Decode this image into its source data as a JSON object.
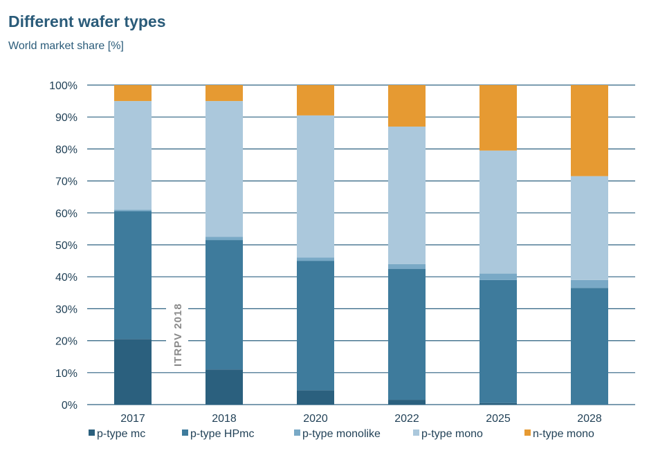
{
  "title": "Different wafer types",
  "subtitle": "World market share [%]",
  "watermark": "ITRPV 2018",
  "colors": {
    "p_type_mc": "#2b607e",
    "p_type_HPmc": "#3e7b9c",
    "p_type_monolike": "#79a9c6",
    "p_type_mono": "#abc8dc",
    "n_type_mono": "#e69a32",
    "gridline": "#2c6180"
  },
  "chart_data": {
    "type": "bar",
    "stacked": true,
    "categories": [
      "2017",
      "2018",
      "2020",
      "2022",
      "2025",
      "2028"
    ],
    "ylim": [
      0,
      100
    ],
    "y_ticks": [
      "0%",
      "10%",
      "20%",
      "30%",
      "40%",
      "50%",
      "60%",
      "70%",
      "80%",
      "90%",
      "100%"
    ],
    "grid": true,
    "legend_position": "bottom",
    "series": [
      {
        "name": "p-type mc",
        "color": "#2b607e",
        "values": [
          20.5,
          11,
          4.5,
          1.5,
          0.5,
          0
        ]
      },
      {
        "name": "p-type HPmc",
        "color": "#3e7b9c",
        "values": [
          40,
          40.5,
          40.5,
          41,
          38.5,
          36.5
        ]
      },
      {
        "name": "p-type monolike",
        "color": "#79a9c6",
        "values": [
          0.5,
          1,
          1,
          1.5,
          2,
          2.5
        ]
      },
      {
        "name": "p-type mono",
        "color": "#abc8dc",
        "values": [
          34,
          42.5,
          44.5,
          43,
          38.5,
          32.5
        ]
      },
      {
        "name": "n-type mono",
        "color": "#e69a32",
        "values": [
          5,
          5,
          9.5,
          13,
          20.5,
          28.5
        ]
      }
    ]
  }
}
